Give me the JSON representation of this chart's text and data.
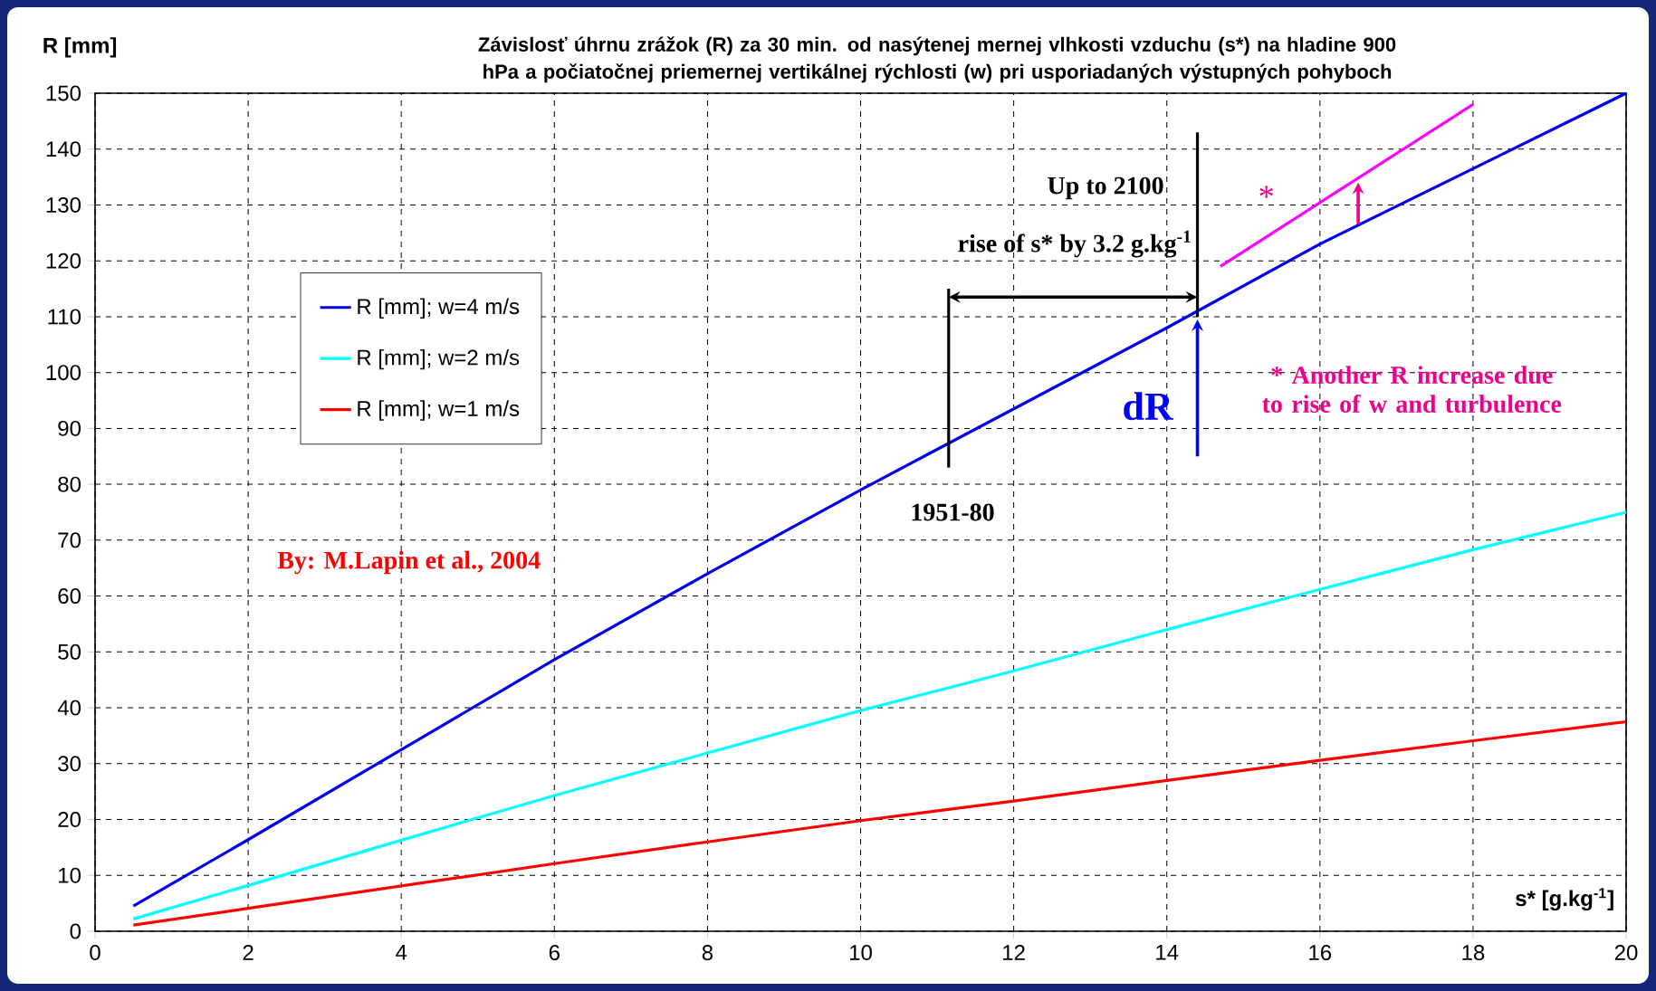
{
  "chart_data": {
    "type": "line",
    "title": "Závislosť úhrnu zrážok (R) za 30 min. od nasýtenej mernej vlhkosti vzduchu (s*) na hladine 900 hPa a počiatočnej priemernej vertikálnej rýchlosti (w) pri usporiadaných výstupných pohyboch",
    "xlabel": "s* [g.kg$^{-1}$]",
    "ylabel": "R [mm]",
    "x": [
      0.5,
      2,
      4,
      6,
      8,
      10,
      12,
      14,
      16,
      18,
      20
    ],
    "series": [
      {
        "name": "R [mm]; w=4 m/s",
        "color": "#0000ee",
        "values": [
          4.5,
          16.4,
          32.5,
          48.6,
          64,
          79,
          93.5,
          108,
          123,
          136.5,
          150
        ]
      },
      {
        "name": "R [mm]; w=2 m/s",
        "color": "#00ffff",
        "values": [
          2.2,
          8.2,
          16.3,
          24.3,
          31.9,
          39.5,
          46.6,
          54,
          61.2,
          68.3,
          75
        ]
      },
      {
        "name": "R [mm]; w=1 m/s",
        "color": "#ff0000",
        "values": [
          1.1,
          4.1,
          8.1,
          12.1,
          16,
          19.8,
          23.3,
          27,
          30.6,
          34.1,
          37.5
        ]
      },
      {
        "type": "line",
        "color": "#ff00ff",
        "x": [
          14.7,
          18
        ],
        "values": [
          119,
          148
        ]
      },
      {
        "type": "line",
        "color": "#000000",
        "x": [
          11.15,
          11.15
        ],
        "values": [
          83,
          115
        ]
      },
      {
        "type": "line",
        "color": "#000000",
        "x": [
          14.4,
          14.4
        ],
        "values": [
          110,
          143
        ]
      }
    ],
    "xlim": [
      0,
      20
    ],
    "xticks": [
      0,
      2,
      4,
      6,
      8,
      10,
      12,
      14,
      16,
      18,
      20
    ],
    "ylim": [
      0,
      150
    ],
    "yticks": [
      0,
      10,
      20,
      30,
      40,
      50,
      60,
      70,
      80,
      90,
      100,
      110,
      120,
      130,
      140,
      150
    ],
    "grid": true,
    "legend": "top left",
    "annotations": [
      "Up to 2100",
      "rise of s* by 3.2 g.kg$^{-1}$",
      "1951-80",
      "dR",
      "*",
      "* Another R increase due to rise of w and turbulence",
      "By: M.Lapin et al., 2004"
    ]
  }
}
